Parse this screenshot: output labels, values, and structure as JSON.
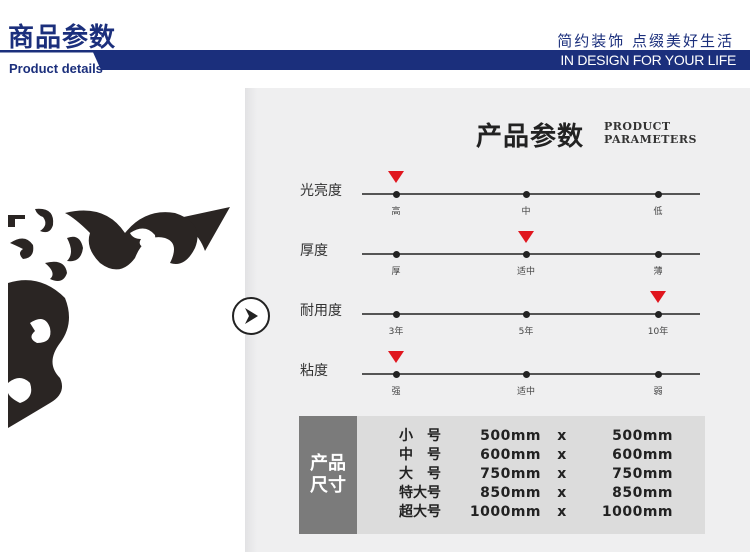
{
  "header": {
    "title": "商品参数",
    "subtitle": "Product details",
    "slogan": "简约装饰 点缀美好生活",
    "tagline": "IN DESIGN FOR YOUR LIFE",
    "brand_color": "#1b2f7c"
  },
  "panel": {
    "title_cn": "产品参数",
    "title_en_1": "PRODUCT",
    "title_en_2": "PARAMETERS",
    "next_icon": "chevron-right-circle-icon",
    "marker_color": "#e0161e",
    "params": [
      {
        "label": "光亮度",
        "ticks": [
          "高",
          "中",
          "低"
        ],
        "selected": 0
      },
      {
        "label": "厚度",
        "ticks": [
          "厚",
          "适中",
          "薄"
        ],
        "selected": 1
      },
      {
        "label": "耐用度",
        "ticks": [
          "3年",
          "5年",
          "10年"
        ],
        "selected": 2
      },
      {
        "label": "粘度",
        "ticks": [
          "强",
          "适中",
          "弱"
        ],
        "selected": 0
      }
    ]
  },
  "sizes": {
    "heading_1": "产品",
    "heading_2": "尺寸",
    "rows": [
      {
        "name": "小　号",
        "w": "500mm",
        "x": "x",
        "h": "500mm"
      },
      {
        "name": "中　号",
        "w": "600mm",
        "x": "x",
        "h": "600mm"
      },
      {
        "name": "大　号",
        "w": "750mm",
        "x": "x",
        "h": "750mm"
      },
      {
        "name": "特大号",
        "w": "850mm",
        "x": "x",
        "h": "850mm"
      },
      {
        "name": "超大号",
        "w": "1000mm",
        "x": "x",
        "h": "1000mm"
      }
    ]
  }
}
